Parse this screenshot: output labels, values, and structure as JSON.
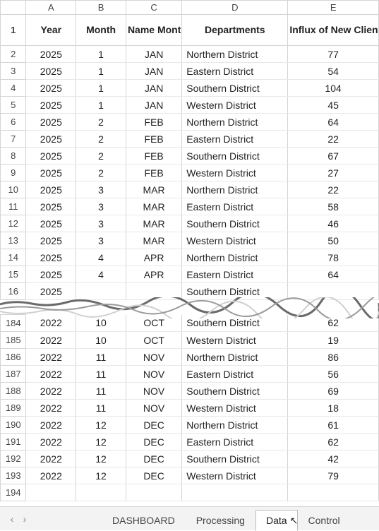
{
  "columns": {
    "A": "A",
    "B": "B",
    "C": "C",
    "D": "D",
    "E": "E"
  },
  "headers": {
    "year": "Year",
    "month": "Month",
    "nameMonth": "Name Month",
    "departments": "Departments",
    "influx": "Influx of New Clients"
  },
  "rowsTop": [
    {
      "n": "2",
      "year": "2025",
      "month": "1",
      "name": "JAN",
      "dept": "Northern District",
      "influx": "77"
    },
    {
      "n": "3",
      "year": "2025",
      "month": "1",
      "name": "JAN",
      "dept": "Eastern District",
      "influx": "54"
    },
    {
      "n": "4",
      "year": "2025",
      "month": "1",
      "name": "JAN",
      "dept": "Southern District",
      "influx": "104"
    },
    {
      "n": "5",
      "year": "2025",
      "month": "1",
      "name": "JAN",
      "dept": "Western District",
      "influx": "45"
    },
    {
      "n": "6",
      "year": "2025",
      "month": "2",
      "name": "FEB",
      "dept": "Northern District",
      "influx": "64"
    },
    {
      "n": "7",
      "year": "2025",
      "month": "2",
      "name": "FEB",
      "dept": "Eastern District",
      "influx": "22"
    },
    {
      "n": "8",
      "year": "2025",
      "month": "2",
      "name": "FEB",
      "dept": "Southern District",
      "influx": "67"
    },
    {
      "n": "9",
      "year": "2025",
      "month": "2",
      "name": "FEB",
      "dept": "Western District",
      "influx": "27"
    },
    {
      "n": "10",
      "year": "2025",
      "month": "3",
      "name": "MAR",
      "dept": "Northern District",
      "influx": "22"
    },
    {
      "n": "11",
      "year": "2025",
      "month": "3",
      "name": "MAR",
      "dept": "Eastern District",
      "influx": "58"
    },
    {
      "n": "12",
      "year": "2025",
      "month": "3",
      "name": "MAR",
      "dept": "Southern District",
      "influx": "46"
    },
    {
      "n": "13",
      "year": "2025",
      "month": "3",
      "name": "MAR",
      "dept": "Western District",
      "influx": "50"
    },
    {
      "n": "14",
      "year": "2025",
      "month": "4",
      "name": "APR",
      "dept": "Northern District",
      "influx": "78"
    },
    {
      "n": "15",
      "year": "2025",
      "month": "4",
      "name": "APR",
      "dept": "Eastern District",
      "influx": "64"
    }
  ],
  "partialRow": {
    "n": "16",
    "year": "2025",
    "dept": "Southern District"
  },
  "rowsBottom": [
    {
      "n": "184",
      "year": "2022",
      "month": "10",
      "name": "OCT",
      "dept": "Southern District",
      "influx": "62"
    },
    {
      "n": "185",
      "year": "2022",
      "month": "10",
      "name": "OCT",
      "dept": "Western District",
      "influx": "19"
    },
    {
      "n": "186",
      "year": "2022",
      "month": "11",
      "name": "NOV",
      "dept": "Northern District",
      "influx": "86"
    },
    {
      "n": "187",
      "year": "2022",
      "month": "11",
      "name": "NOV",
      "dept": "Eastern District",
      "influx": "56"
    },
    {
      "n": "188",
      "year": "2022",
      "month": "11",
      "name": "NOV",
      "dept": "Southern District",
      "influx": "69"
    },
    {
      "n": "189",
      "year": "2022",
      "month": "11",
      "name": "NOV",
      "dept": "Western District",
      "influx": "18"
    },
    {
      "n": "190",
      "year": "2022",
      "month": "12",
      "name": "DEC",
      "dept": "Northern District",
      "influx": "61"
    },
    {
      "n": "191",
      "year": "2022",
      "month": "12",
      "name": "DEC",
      "dept": "Eastern District",
      "influx": "62"
    },
    {
      "n": "192",
      "year": "2022",
      "month": "12",
      "name": "DEC",
      "dept": "Southern District",
      "influx": "42"
    },
    {
      "n": "193",
      "year": "2022",
      "month": "12",
      "name": "DEC",
      "dept": "Western District",
      "influx": "79"
    }
  ],
  "emptyRow": {
    "n": "194"
  },
  "tabs": {
    "dashboard": "DASHBOARD",
    "processing": "Processing",
    "data": "Data",
    "control": "Control"
  },
  "colors": {
    "gridBorder": "#d4d4d4",
    "rowBorder": "#e8e8e8",
    "tabBg": "#f3f3f3",
    "text": "#222222",
    "tearDark": "#6a6a6a",
    "tearLight": "#d0d0d0"
  }
}
